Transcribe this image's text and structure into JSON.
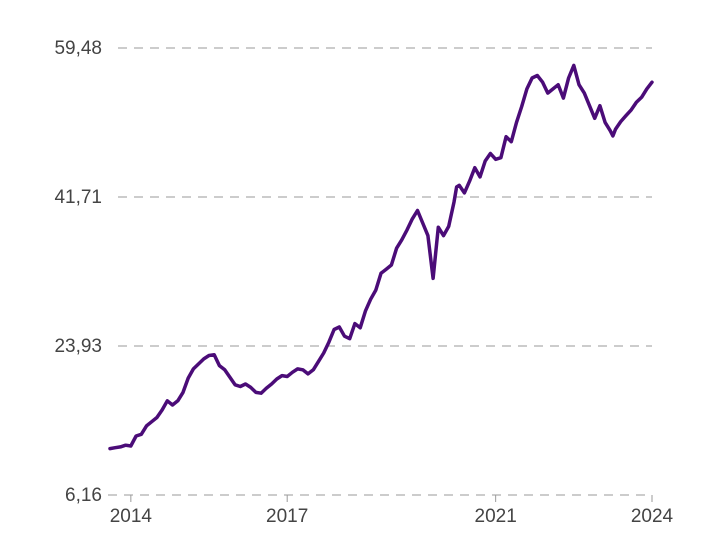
{
  "chart_data": {
    "type": "line",
    "title": "",
    "xlabel": "",
    "ylabel": "",
    "grid": true,
    "legend": "none",
    "line_color": "#4b0c78",
    "xlim": [
      2013.6,
      2024.0
    ],
    "ylim": [
      6.16,
      59.48
    ],
    "y_ticks": [
      {
        "value": 6.16,
        "label": "6,16"
      },
      {
        "value": 23.93,
        "label": "23,93"
      },
      {
        "value": 41.71,
        "label": "41,71"
      },
      {
        "value": 59.48,
        "label": "59,48"
      }
    ],
    "x_ticks": [
      {
        "value": 2014,
        "label": "2014"
      },
      {
        "value": 2017,
        "label": "2017"
      },
      {
        "value": 2021,
        "label": "2021"
      },
      {
        "value": 2024,
        "label": "2024"
      }
    ],
    "series": [
      {
        "x": [
          2013.6,
          2013.7,
          2013.8,
          2013.9,
          2014.0,
          2014.1,
          2014.2,
          2014.3,
          2014.4,
          2014.5,
          2014.6,
          2014.7,
          2014.8,
          2014.9,
          2015.0,
          2015.1,
          2015.2,
          2015.3,
          2015.4,
          2015.5,
          2015.6,
          2015.7,
          2015.8,
          2015.9,
          2016.0,
          2016.1,
          2016.2,
          2016.3,
          2016.4,
          2016.5,
          2016.6,
          2016.7,
          2016.8,
          2016.9,
          2017.0,
          2017.1,
          2017.2,
          2017.3,
          2017.4,
          2017.5,
          2017.6,
          2017.7,
          2017.8,
          2017.9,
          2018.0,
          2018.1,
          2018.2,
          2018.3,
          2018.4,
          2018.5,
          2018.6,
          2018.7,
          2018.8,
          2018.9,
          2019.0,
          2019.1,
          2019.2,
          2019.3,
          2019.4,
          2019.5,
          2019.6,
          2019.7,
          2019.8,
          2019.9,
          2020.0,
          2020.1,
          2020.2,
          2020.25,
          2020.3,
          2020.4,
          2020.5,
          2020.6,
          2020.7,
          2020.8,
          2020.9,
          2021.0,
          2021.1,
          2021.2,
          2021.3,
          2021.4,
          2021.5,
          2021.6,
          2021.7,
          2021.8,
          2021.9,
          2022.0,
          2022.1,
          2022.2,
          2022.3,
          2022.4,
          2022.5,
          2022.6,
          2022.7,
          2022.8,
          2022.9,
          2023.0,
          2023.1,
          2023.2,
          2023.25,
          2023.3,
          2023.4,
          2023.5,
          2023.6,
          2023.7,
          2023.8,
          2023.9,
          2024.0
        ],
        "values": [
          11.7,
          11.8,
          11.9,
          12.1,
          12.0,
          13.2,
          13.4,
          14.4,
          14.9,
          15.4,
          16.3,
          17.4,
          16.9,
          17.4,
          18.4,
          20.1,
          21.2,
          21.8,
          22.4,
          22.8,
          22.9,
          21.6,
          21.1,
          20.2,
          19.3,
          19.1,
          19.4,
          19.0,
          18.4,
          18.3,
          18.9,
          19.4,
          20.0,
          20.4,
          20.3,
          20.8,
          21.2,
          21.1,
          20.6,
          21.1,
          22.1,
          23.1,
          24.4,
          25.9,
          26.2,
          25.1,
          24.8,
          26.6,
          26.1,
          28.1,
          29.5,
          30.6,
          32.6,
          33.1,
          33.6,
          35.6,
          36.6,
          37.8,
          39.1,
          40.1,
          38.6,
          37.1,
          32.0,
          38.1,
          37.1,
          38.2,
          41.1,
          42.9,
          43.1,
          42.2,
          43.6,
          45.2,
          44.1,
          46.0,
          46.9,
          46.2,
          46.4,
          48.9,
          48.3,
          50.6,
          52.5,
          54.6,
          55.9,
          56.2,
          55.4,
          54.1,
          54.6,
          55.1,
          53.5,
          55.9,
          57.4,
          55.1,
          54.1,
          52.6,
          51.1,
          52.6,
          50.6,
          49.6,
          49.0,
          49.8,
          50.7,
          51.4,
          52.1,
          53.0,
          53.6,
          54.6,
          55.4
        ]
      }
    ]
  }
}
